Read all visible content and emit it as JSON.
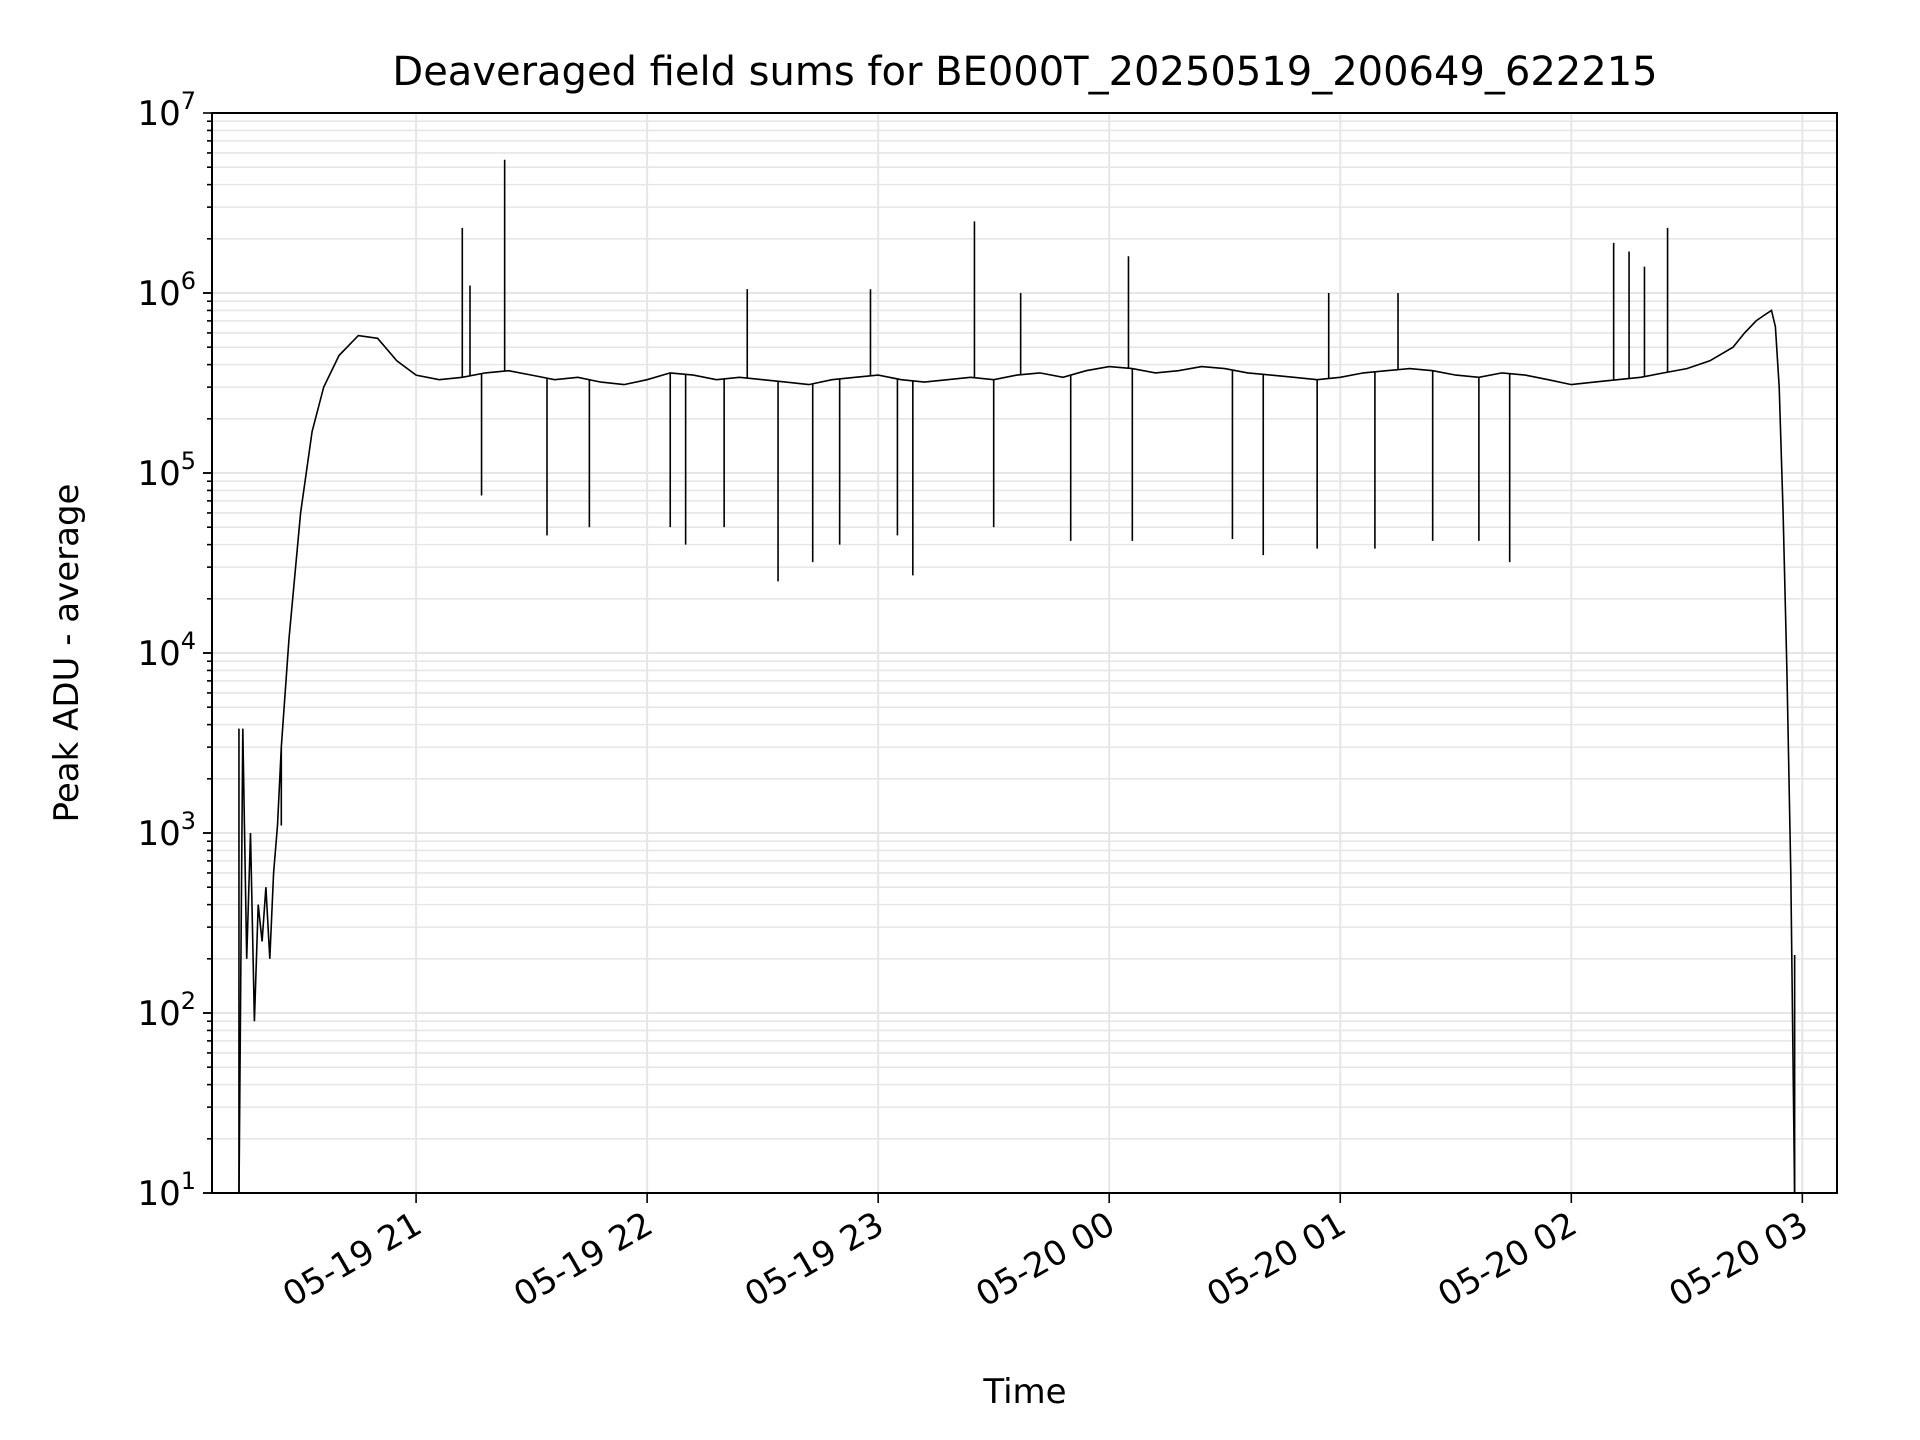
{
  "chart_data": {
    "type": "line",
    "title": "Deaveraged field sums for BE000T_20250519_200649_622215",
    "xlabel": "Time",
    "ylabel": "Peak ADU - average",
    "yscale": "log",
    "ylim": [
      10,
      10000000
    ],
    "xlim": [
      "2025-05-19 20:07",
      "2025-05-20 03:09"
    ],
    "grid": true,
    "line_color": "#000000",
    "grid_color": "#e6e6e6",
    "x_ticks": [
      {
        "value": "2025-05-19 21:00",
        "label": "05-19 21"
      },
      {
        "value": "2025-05-19 22:00",
        "label": "05-19 22"
      },
      {
        "value": "2025-05-19 23:00",
        "label": "05-19 23"
      },
      {
        "value": "2025-05-20 00:00",
        "label": "05-20 00"
      },
      {
        "value": "2025-05-20 01:00",
        "label": "05-20 01"
      },
      {
        "value": "2025-05-20 02:00",
        "label": "05-20 02"
      },
      {
        "value": "2025-05-20 03:00",
        "label": "05-20 03"
      }
    ],
    "y_ticks": [
      {
        "value": 10,
        "base": "10",
        "exp": "1"
      },
      {
        "value": 100,
        "base": "10",
        "exp": "2"
      },
      {
        "value": 1000,
        "base": "10",
        "exp": "3"
      },
      {
        "value": 10000,
        "base": "10",
        "exp": "4"
      },
      {
        "value": 100000,
        "base": "10",
        "exp": "5"
      },
      {
        "value": 1000000,
        "base": "10",
        "exp": "6"
      },
      {
        "value": 10000000,
        "base": "10",
        "exp": "7"
      }
    ],
    "series": [
      {
        "x": [
          "2025-05-19 20:14",
          "2025-05-19 20:15",
          "2025-05-19 20:16",
          "2025-05-19 20:17",
          "2025-05-19 20:18",
          "2025-05-19 20:19",
          "2025-05-19 20:20",
          "2025-05-19 20:21",
          "2025-05-19 20:22",
          "2025-05-19 20:23",
          "2025-05-19 20:24",
          "2025-05-19 20:25",
          "2025-05-19 20:27",
          "2025-05-19 20:30",
          "2025-05-19 20:33",
          "2025-05-19 20:36",
          "2025-05-19 20:40",
          "2025-05-19 20:45",
          "2025-05-19 20:50",
          "2025-05-19 20:55",
          "2025-05-19 21:00",
          "2025-05-19 21:06",
          "2025-05-19 21:12",
          "2025-05-19 21:18",
          "2025-05-19 21:24",
          "2025-05-19 21:30",
          "2025-05-19 21:36",
          "2025-05-19 21:42",
          "2025-05-19 21:48",
          "2025-05-19 21:54",
          "2025-05-19 22:00",
          "2025-05-19 22:06",
          "2025-05-19 22:12",
          "2025-05-19 22:18",
          "2025-05-19 22:24",
          "2025-05-19 22:30",
          "2025-05-19 22:36",
          "2025-05-19 22:42",
          "2025-05-19 22:48",
          "2025-05-19 22:54",
          "2025-05-19 23:00",
          "2025-05-19 23:06",
          "2025-05-19 23:12",
          "2025-05-19 23:18",
          "2025-05-19 23:24",
          "2025-05-19 23:30",
          "2025-05-19 23:36",
          "2025-05-19 23:42",
          "2025-05-19 23:48",
          "2025-05-19 23:54",
          "2025-05-20 00:00",
          "2025-05-20 00:06",
          "2025-05-20 00:12",
          "2025-05-20 00:18",
          "2025-05-20 00:24",
          "2025-05-20 00:30",
          "2025-05-20 00:36",
          "2025-05-20 00:42",
          "2025-05-20 00:48",
          "2025-05-20 00:54",
          "2025-05-20 01:00",
          "2025-05-20 01:06",
          "2025-05-20 01:12",
          "2025-05-20 01:18",
          "2025-05-20 01:24",
          "2025-05-20 01:30",
          "2025-05-20 01:36",
          "2025-05-20 01:42",
          "2025-05-20 01:48",
          "2025-05-20 01:54",
          "2025-05-20 02:00",
          "2025-05-20 02:06",
          "2025-05-20 02:12",
          "2025-05-20 02:18",
          "2025-05-20 02:24",
          "2025-05-20 02:30",
          "2025-05-20 02:36",
          "2025-05-20 02:42",
          "2025-05-20 02:45",
          "2025-05-20 02:48",
          "2025-05-20 02:50",
          "2025-05-20 02:52",
          "2025-05-20 02:53",
          "2025-05-20 02:54",
          "2025-05-20 02:55",
          "2025-05-20 02:56",
          "2025-05-20 02:57",
          "2025-05-20 02:58"
        ],
        "y": [
          10,
          3800,
          200,
          1000,
          90,
          400,
          250,
          500,
          200,
          600,
          1100,
          3000,
          12000,
          60000,
          170000,
          300000,
          450000,
          580000,
          560000,
          420000,
          350000,
          330000,
          340000,
          360000,
          370000,
          350000,
          330000,
          340000,
          320000,
          310000,
          330000,
          360000,
          350000,
          330000,
          340000,
          330000,
          320000,
          310000,
          330000,
          340000,
          350000,
          330000,
          320000,
          330000,
          340000,
          330000,
          350000,
          360000,
          340000,
          370000,
          390000,
          380000,
          360000,
          370000,
          390000,
          380000,
          360000,
          350000,
          340000,
          330000,
          340000,
          360000,
          370000,
          380000,
          370000,
          350000,
          340000,
          360000,
          350000,
          330000,
          310000,
          320000,
          330000,
          340000,
          360000,
          380000,
          420000,
          500000,
          600000,
          700000,
          750000,
          800000,
          650000,
          300000,
          60000,
          8000,
          600,
          10
        ]
      }
    ],
    "spikes": [
      {
        "x": "2025-05-19 20:14",
        "y": 3800,
        "dir": "up"
      },
      {
        "x": "2025-05-19 20:25",
        "y": 1100,
        "dir": "up"
      },
      {
        "x": "2025-05-19 21:12",
        "y": 2300000,
        "dir": "up"
      },
      {
        "x": "2025-05-19 21:14",
        "y": 1100000,
        "dir": "up"
      },
      {
        "x": "2025-05-19 21:23",
        "y": 5500000,
        "dir": "up"
      },
      {
        "x": "2025-05-19 21:17",
        "y": 75000,
        "dir": "down"
      },
      {
        "x": "2025-05-19 21:34",
        "y": 45000,
        "dir": "down"
      },
      {
        "x": "2025-05-19 21:45",
        "y": 50000,
        "dir": "down"
      },
      {
        "x": "2025-05-19 22:06",
        "y": 50000,
        "dir": "down"
      },
      {
        "x": "2025-05-19 22:10",
        "y": 40000,
        "dir": "down"
      },
      {
        "x": "2025-05-19 22:20",
        "y": 50000,
        "dir": "down"
      },
      {
        "x": "2025-05-19 22:26",
        "y": 1050000,
        "dir": "up"
      },
      {
        "x": "2025-05-19 22:34",
        "y": 25000,
        "dir": "down"
      },
      {
        "x": "2025-05-19 22:43",
        "y": 32000,
        "dir": "down"
      },
      {
        "x": "2025-05-19 22:50",
        "y": 40000,
        "dir": "down"
      },
      {
        "x": "2025-05-19 22:58",
        "y": 1050000,
        "dir": "up"
      },
      {
        "x": "2025-05-19 23:05",
        "y": 45000,
        "dir": "down"
      },
      {
        "x": "2025-05-19 23:09",
        "y": 27000,
        "dir": "down"
      },
      {
        "x": "2025-05-19 23:25",
        "y": 2500000,
        "dir": "up"
      },
      {
        "x": "2025-05-19 23:30",
        "y": 50000,
        "dir": "down"
      },
      {
        "x": "2025-05-19 23:37",
        "y": 1000000,
        "dir": "up"
      },
      {
        "x": "2025-05-19 23:50",
        "y": 42000,
        "dir": "down"
      },
      {
        "x": "2025-05-20 00:05",
        "y": 1600000,
        "dir": "up"
      },
      {
        "x": "2025-05-20 00:06",
        "y": 42000,
        "dir": "down"
      },
      {
        "x": "2025-05-20 00:32",
        "y": 43000,
        "dir": "down"
      },
      {
        "x": "2025-05-20 00:40",
        "y": 35000,
        "dir": "down"
      },
      {
        "x": "2025-05-20 00:54",
        "y": 38000,
        "dir": "down"
      },
      {
        "x": "2025-05-20 00:57",
        "y": 1000000,
        "dir": "up"
      },
      {
        "x": "2025-05-20 01:09",
        "y": 38000,
        "dir": "down"
      },
      {
        "x": "2025-05-20 01:15",
        "y": 1000000,
        "dir": "up"
      },
      {
        "x": "2025-05-20 01:24",
        "y": 42000,
        "dir": "down"
      },
      {
        "x": "2025-05-20 01:36",
        "y": 42000,
        "dir": "down"
      },
      {
        "x": "2025-05-20 01:44",
        "y": 32000,
        "dir": "down"
      },
      {
        "x": "2025-05-20 02:11",
        "y": 1900000,
        "dir": "up"
      },
      {
        "x": "2025-05-20 02:15",
        "y": 1700000,
        "dir": "up"
      },
      {
        "x": "2025-05-20 02:19",
        "y": 1400000,
        "dir": "up"
      },
      {
        "x": "2025-05-20 02:25",
        "y": 2300000,
        "dir": "up"
      },
      {
        "x": "2025-05-20 02:58",
        "y": 210,
        "dir": "up"
      }
    ]
  }
}
